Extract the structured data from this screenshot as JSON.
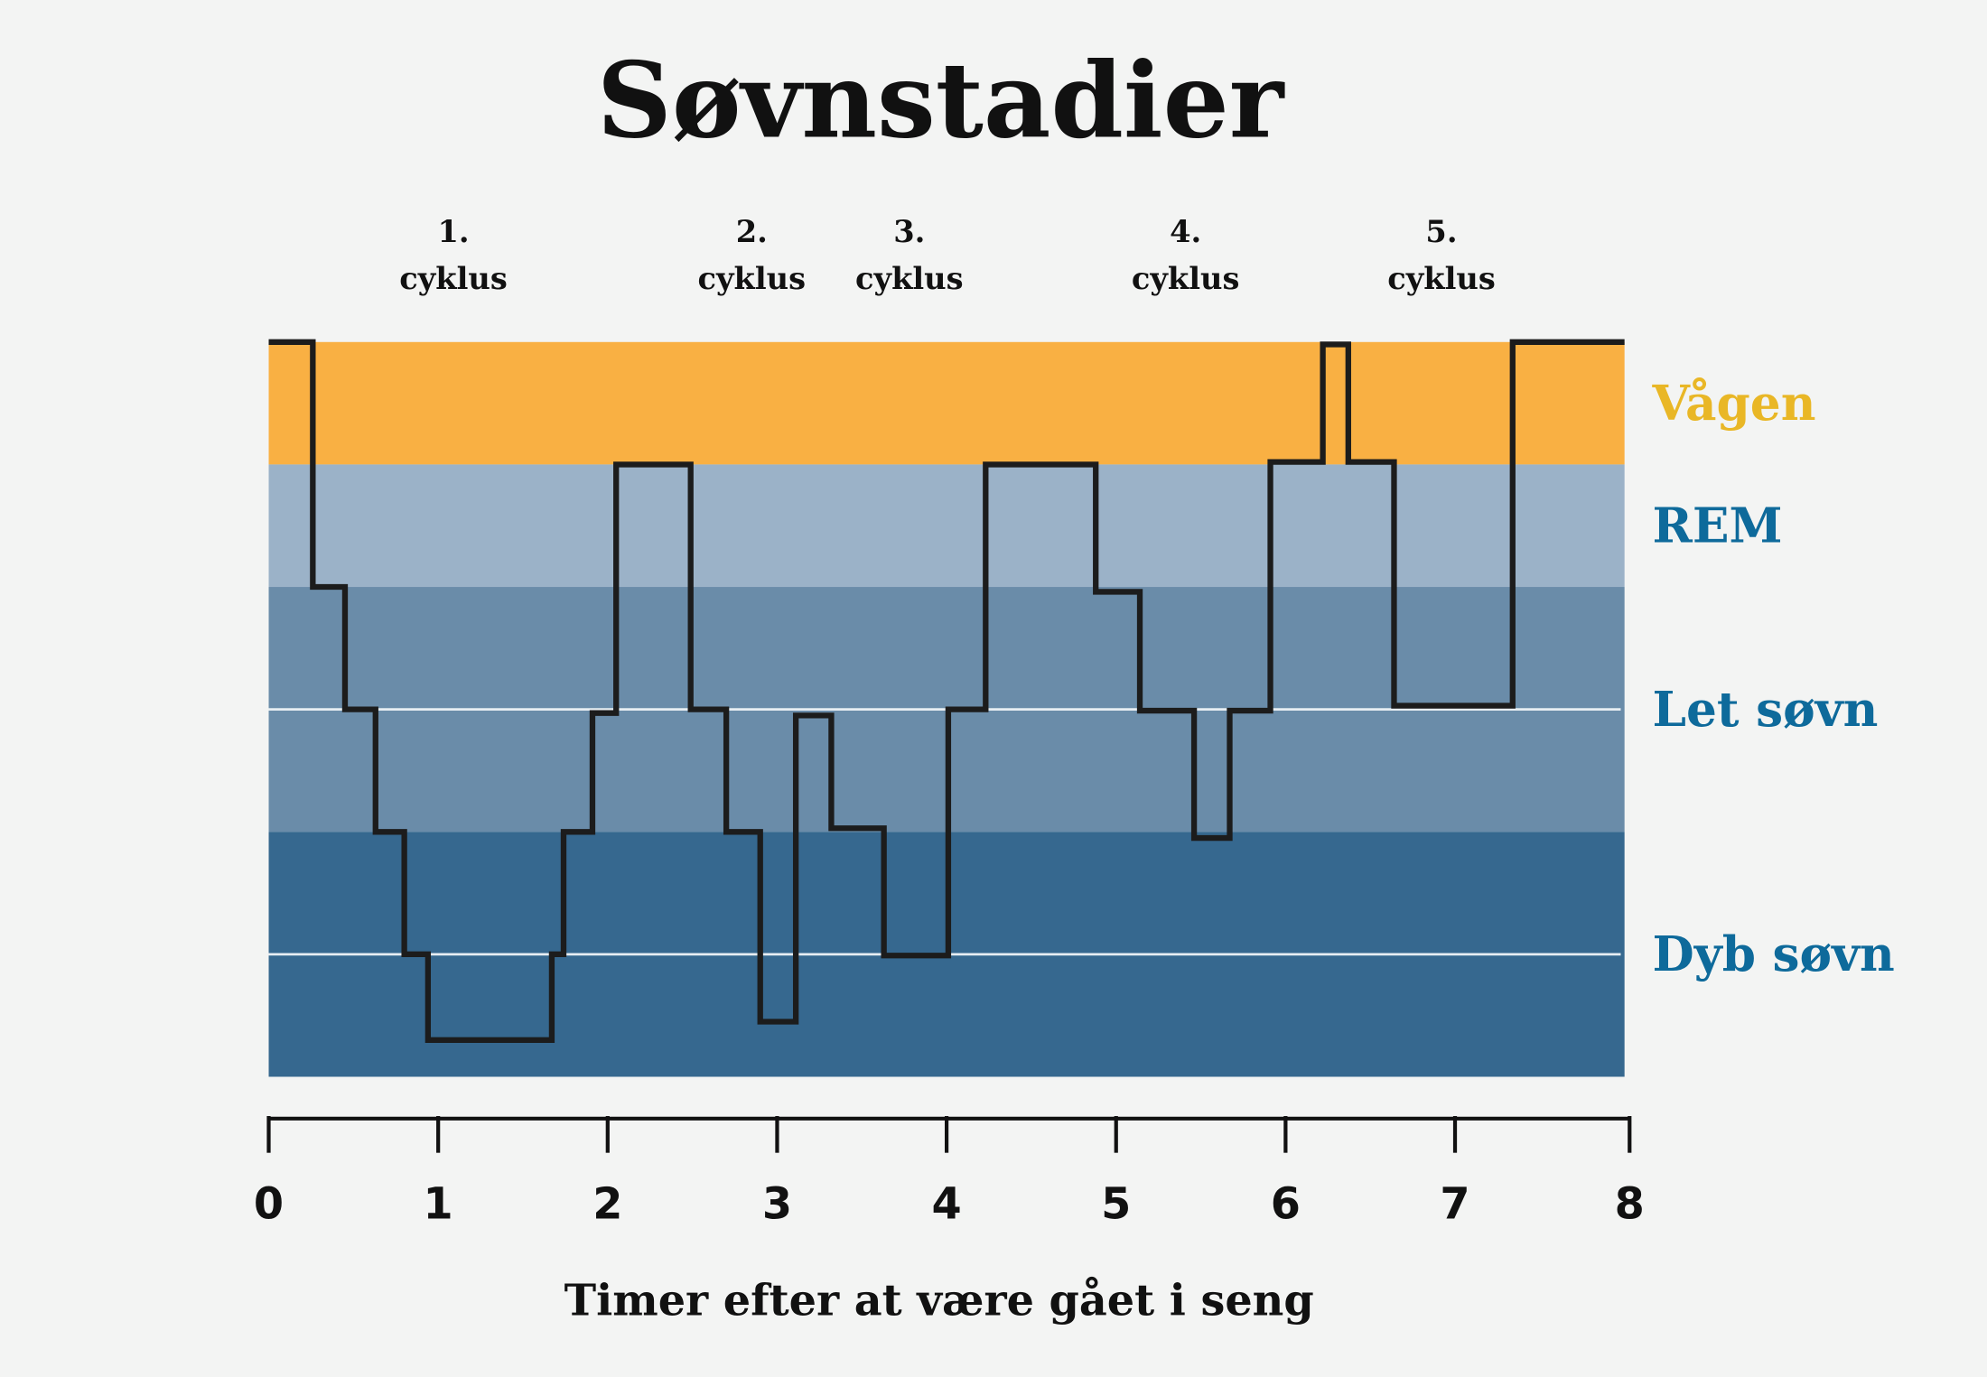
{
  "chart_data": {
    "type": "line",
    "subtype": "step-hypnogram",
    "title": "Søvnstadier",
    "xlabel": "Timer efter at være gået i seng",
    "ylabel": "",
    "xlim": [
      0,
      8
    ],
    "x_ticks": [
      "0",
      "1",
      "2",
      "3",
      "4",
      "5",
      "6",
      "7",
      "8"
    ],
    "grid": false,
    "y_scale_note": "depth: 0 = top of Vågen band, 6 = bottom of Dyb søvn band",
    "ylim": [
      0,
      6
    ],
    "bands": [
      {
        "label": "Vågen",
        "from": 0,
        "to": 1,
        "color": "#f9b043",
        "label_color": "#e9b726"
      },
      {
        "label": "REM",
        "from": 1,
        "to": 2,
        "color": "#9bb2c8",
        "label_color": "#0e6a9b"
      },
      {
        "label": "Let søvn",
        "from": 2,
        "to": 4,
        "color": "#6a8ca9",
        "label_color": "#0e6a9b"
      },
      {
        "label": "Dyb søvn",
        "from": 4,
        "to": 6,
        "color": "#36688f",
        "label_color": "#0e6a9b"
      }
    ],
    "guide_lines_depth": [
      3,
      5
    ],
    "cycles": [
      {
        "number": "1.",
        "label": "cyklus",
        "at": 1.09
      },
      {
        "number": "2.",
        "label": "cyklus",
        "at": 2.85
      },
      {
        "number": "3.",
        "label": "cyklus",
        "at": 3.78
      },
      {
        "number": "4.",
        "label": "cyklus",
        "at": 5.41
      },
      {
        "number": "5.",
        "label": "cyklus",
        "at": 6.92
      }
    ],
    "series": [
      {
        "color": "#1c1c1c",
        "points": [
          [
            0,
            0
          ],
          [
            0.26,
            0
          ],
          [
            0.26,
            2
          ],
          [
            0.45,
            2
          ],
          [
            0.45,
            3
          ],
          [
            0.63,
            3
          ],
          [
            0.63,
            4
          ],
          [
            0.8,
            4
          ],
          [
            0.8,
            5
          ],
          [
            0.94,
            5
          ],
          [
            0.94,
            5.7
          ],
          [
            1.67,
            5.7
          ],
          [
            1.67,
            5
          ],
          [
            1.74,
            5
          ],
          [
            1.74,
            4
          ],
          [
            1.91,
            4
          ],
          [
            1.91,
            3.03
          ],
          [
            2.05,
            3.03
          ],
          [
            2.05,
            1
          ],
          [
            2.49,
            1
          ],
          [
            2.49,
            3
          ],
          [
            2.7,
            3
          ],
          [
            2.7,
            4
          ],
          [
            2.9,
            4
          ],
          [
            2.9,
            5.55
          ],
          [
            3.11,
            5.55
          ],
          [
            3.11,
            3.05
          ],
          [
            3.32,
            3.05
          ],
          [
            3.32,
            3.97
          ],
          [
            3.63,
            3.97
          ],
          [
            3.63,
            5.01
          ],
          [
            4.01,
            5.01
          ],
          [
            4.01,
            3
          ],
          [
            4.23,
            3
          ],
          [
            4.23,
            1
          ],
          [
            4.88,
            1
          ],
          [
            4.88,
            2.04
          ],
          [
            5.14,
            2.04
          ],
          [
            5.14,
            3.01
          ],
          [
            5.46,
            3.01
          ],
          [
            5.46,
            4.05
          ],
          [
            5.67,
            4.05
          ],
          [
            5.67,
            3.01
          ],
          [
            5.91,
            3.01
          ],
          [
            5.91,
            0.98
          ],
          [
            6.22,
            0.98
          ],
          [
            6.22,
            0.02
          ],
          [
            6.37,
            0.02
          ],
          [
            6.37,
            0.98
          ],
          [
            6.64,
            0.98
          ],
          [
            6.64,
            2.97
          ],
          [
            7.34,
            2.97
          ],
          [
            7.34,
            0
          ],
          [
            8,
            0
          ]
        ]
      }
    ]
  }
}
